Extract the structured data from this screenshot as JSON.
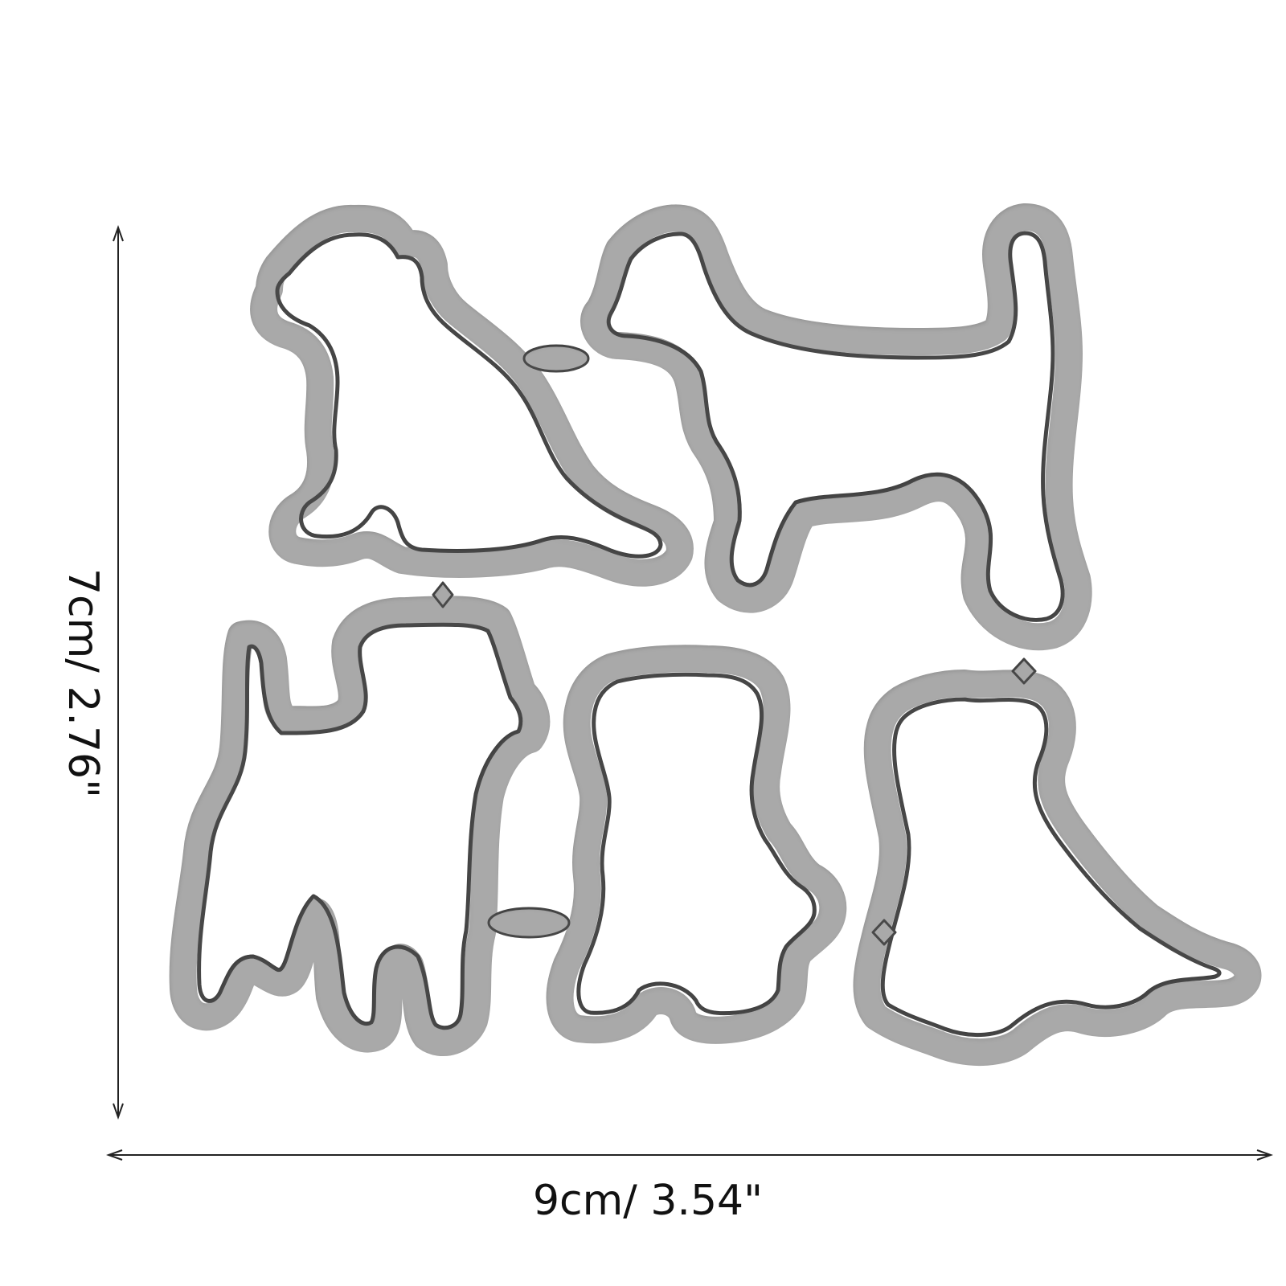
{
  "product": {
    "name": "dog-cutting-dies-set",
    "pieces": [
      "sitting-puppy",
      "standing-dog",
      "scottie-dog",
      "puppy-front",
      "sitting-dog"
    ],
    "colors": {
      "metal": "#a9a9a9",
      "metal_shadow": "#4a4a4a",
      "background": "#ffffff",
      "ink": "#111111"
    }
  },
  "dimensions": {
    "height_label": "7cm/ 2.76\"",
    "width_label": "9cm/ 3.54\""
  }
}
